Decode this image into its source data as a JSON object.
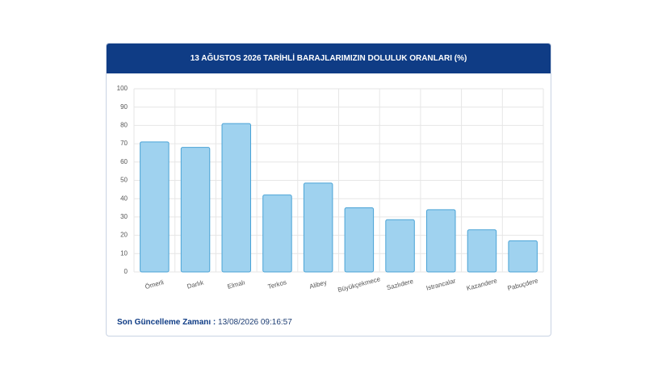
{
  "chart_data": {
    "type": "bar",
    "title": "13 AĞUSTOS 2026 TARİHLİ BARAJLARIMIZIN DOLULUK ORANLARI (%)",
    "categories": [
      "Ömerli",
      "Darlık",
      "Elmalı",
      "Terkos",
      "Alibey",
      "Büyükçekmece",
      "Sazlıdere",
      "Istrancalar",
      "Kazandere",
      "Pabuçdere"
    ],
    "values": [
      71,
      68,
      81,
      42,
      48.5,
      35,
      28.5,
      34,
      23,
      17
    ],
    "color": "#9fd2ef",
    "edge_color": "#4aa3d6",
    "ylim": [
      0,
      100
    ],
    "yticks": [
      0,
      10,
      20,
      30,
      40,
      50,
      60,
      70,
      80,
      90,
      100
    ],
    "grid": true
  },
  "footer": {
    "label": "Son Güncelleme Zamanı :",
    "value": "13/08/2026 09:16:57"
  }
}
